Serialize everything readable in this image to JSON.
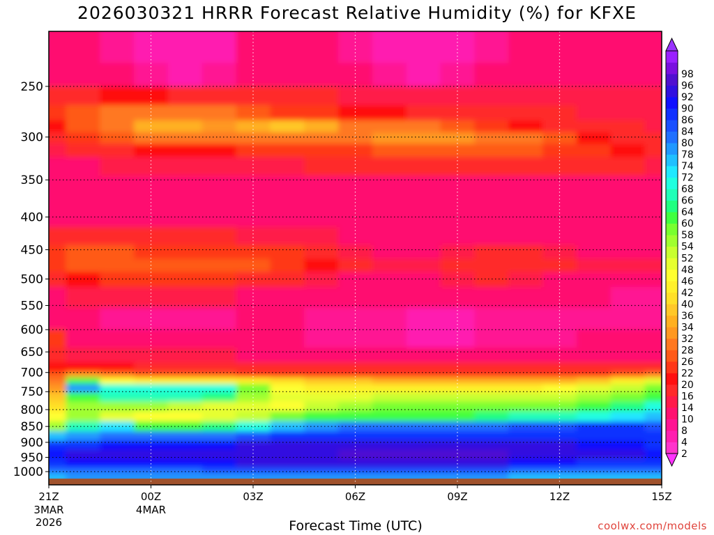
{
  "chart_data": {
    "type": "heatmap",
    "title": "2026030321 HRRR Forecast Relative Humidity (%) for KFXE",
    "xlabel": "Forecast Time (UTC)",
    "ylabel": "",
    "credit": "coolwx.com/models",
    "x_ticks": [
      {
        "label": "21Z",
        "sub1": "3MAR",
        "sub2": "2026",
        "hour": 0
      },
      {
        "label": "00Z",
        "sub1": "4MAR",
        "sub2": "",
        "hour": 3
      },
      {
        "label": "03Z",
        "sub1": "",
        "sub2": "",
        "hour": 6
      },
      {
        "label": "06Z",
        "sub1": "",
        "sub2": "",
        "hour": 9
      },
      {
        "label": "09Z",
        "sub1": "",
        "sub2": "",
        "hour": 12
      },
      {
        "label": "12Z",
        "sub1": "",
        "sub2": "",
        "hour": 15
      },
      {
        "label": "15Z",
        "sub1": "",
        "sub2": "",
        "hour": 18
      }
    ],
    "y_ticks": [
      {
        "label": "250",
        "p": 250
      },
      {
        "label": "300",
        "p": 300
      },
      {
        "label": "350",
        "p": 350
      },
      {
        "label": "400",
        "p": 400
      },
      {
        "label": "450",
        "p": 450
      },
      {
        "label": "500",
        "p": 500
      },
      {
        "label": "550",
        "p": 550
      },
      {
        "label": "600",
        "p": 600
      },
      {
        "label": "650",
        "p": 650
      },
      {
        "label": "700",
        "p": 700
      },
      {
        "label": "750",
        "p": 750
      },
      {
        "label": "800",
        "p": 800
      },
      {
        "label": "850",
        "p": 850
      },
      {
        "label": "900",
        "p": 900
      },
      {
        "label": "950",
        "p": 950
      },
      {
        "label": "1000",
        "p": 1000
      }
    ],
    "xlim": [
      0,
      18
    ],
    "ylim_hpa": [
      200,
      1030
    ],
    "y_scale": "log-pressure",
    "grid": true,
    "colorbar_levels": [
      2,
      4,
      8,
      10,
      14,
      16,
      20,
      22,
      26,
      28,
      32,
      34,
      36,
      40,
      42,
      46,
      48,
      52,
      54,
      58,
      60,
      64,
      66,
      68,
      72,
      74,
      78,
      80,
      84,
      86,
      90,
      92,
      96,
      98
    ],
    "colorbar_colors": [
      "#ff33cc",
      "#ff1fb0",
      "#ff1493",
      "#ff1070",
      "#ff1a4a",
      "#ff2a2a",
      "#ff1010",
      "#ff3818",
      "#ff5a18",
      "#ff7820",
      "#ff9820",
      "#ffb020",
      "#ffc828",
      "#ffe028",
      "#fff02a",
      "#ffff30",
      "#e6ff30",
      "#c8ff30",
      "#a0ff30",
      "#78ff30",
      "#40ff40",
      "#20ff80",
      "#20ffb8",
      "#20ffe0",
      "#20e8ff",
      "#20c0ff",
      "#2098ff",
      "#2070ff",
      "#1a50ff",
      "#1030ff",
      "#1010ff",
      "#3010e0",
      "#5010d0",
      "#7a10e0",
      "#9a20ff"
    ],
    "colorbar_under": "#ff33ff",
    "colorbar_over": "#9933ff",
    "ground_color": "#a0522d",
    "rows": [
      {
        "p": 220,
        "values": [
          10,
          10,
          8,
          6,
          4,
          6,
          10,
          10,
          10,
          8,
          6,
          4,
          6,
          8,
          10,
          10,
          10,
          10,
          10
        ]
      },
      {
        "p": 240,
        "values": [
          12,
          12,
          10,
          8,
          6,
          8,
          12,
          12,
          12,
          10,
          8,
          6,
          8,
          10,
          12,
          12,
          12,
          12,
          12
        ]
      },
      {
        "p": 260,
        "values": [
          16,
          18,
          20,
          20,
          18,
          18,
          16,
          16,
          16,
          14,
          14,
          14,
          14,
          14,
          14,
          14,
          14,
          14,
          14
        ]
      },
      {
        "p": 275,
        "values": [
          22,
          26,
          30,
          30,
          28,
          28,
          26,
          24,
          22,
          20,
          20,
          18,
          16,
          16,
          16,
          16,
          14,
          14,
          14
        ]
      },
      {
        "p": 290,
        "values": [
          20,
          26,
          30,
          34,
          34,
          32,
          34,
          36,
          34,
          30,
          28,
          28,
          26,
          24,
          20,
          18,
          16,
          16,
          14
        ]
      },
      {
        "p": 300,
        "values": [
          18,
          22,
          26,
          28,
          28,
          28,
          30,
          30,
          30,
          30,
          32,
          32,
          32,
          30,
          28,
          26,
          20,
          18,
          16
        ]
      },
      {
        "p": 315,
        "values": [
          14,
          16,
          18,
          20,
          20,
          20,
          22,
          22,
          22,
          24,
          26,
          26,
          26,
          26,
          26,
          24,
          22,
          20,
          18
        ]
      },
      {
        "p": 330,
        "values": [
          12,
          12,
          14,
          14,
          14,
          14,
          14,
          14,
          16,
          16,
          18,
          18,
          18,
          18,
          18,
          18,
          18,
          16,
          14
        ]
      },
      {
        "p": 360,
        "values": [
          10,
          10,
          10,
          10,
          10,
          10,
          10,
          10,
          10,
          10,
          10,
          10,
          10,
          10,
          10,
          10,
          10,
          10,
          10
        ]
      },
      {
        "p": 400,
        "values": [
          12,
          12,
          12,
          10,
          10,
          10,
          12,
          12,
          12,
          10,
          10,
          10,
          10,
          10,
          12,
          12,
          10,
          10,
          10
        ]
      },
      {
        "p": 430,
        "values": [
          16,
          18,
          18,
          16,
          16,
          16,
          14,
          14,
          14,
          12,
          12,
          12,
          12,
          12,
          12,
          12,
          12,
          12,
          12
        ]
      },
      {
        "p": 455,
        "values": [
          22,
          26,
          26,
          24,
          24,
          24,
          24,
          22,
          18,
          14,
          12,
          12,
          14,
          16,
          16,
          14,
          12,
          12,
          12
        ]
      },
      {
        "p": 475,
        "values": [
          24,
          26,
          26,
          26,
          26,
          26,
          26,
          24,
          20,
          16,
          14,
          14,
          16,
          18,
          18,
          16,
          14,
          14,
          14
        ]
      },
      {
        "p": 500,
        "values": [
          16,
          20,
          22,
          22,
          22,
          22,
          18,
          16,
          14,
          12,
          12,
          12,
          14,
          16,
          14,
          12,
          12,
          10,
          12
        ]
      },
      {
        "p": 530,
        "values": [
          12,
          14,
          14,
          14,
          14,
          14,
          12,
          12,
          12,
          10,
          10,
          10,
          10,
          10,
          10,
          10,
          10,
          8,
          8
        ]
      },
      {
        "p": 580,
        "values": [
          10,
          10,
          8,
          8,
          8,
          8,
          10,
          10,
          8,
          8,
          8,
          6,
          6,
          8,
          8,
          8,
          8,
          8,
          8
        ]
      },
      {
        "p": 620,
        "values": [
          24,
          12,
          10,
          10,
          10,
          10,
          10,
          10,
          8,
          8,
          8,
          6,
          6,
          8,
          8,
          8,
          10,
          12,
          10
        ]
      },
      {
        "p": 660,
        "values": [
          16,
          14,
          14,
          14,
          14,
          14,
          12,
          12,
          12,
          12,
          12,
          12,
          12,
          12,
          12,
          12,
          12,
          12,
          12
        ]
      },
      {
        "p": 690,
        "values": [
          20,
          20,
          20,
          18,
          18,
          18,
          18,
          18,
          18,
          18,
          18,
          18,
          18,
          18,
          18,
          18,
          18,
          16,
          18
        ]
      },
      {
        "p": 705,
        "values": [
          26,
          32,
          28,
          26,
          26,
          26,
          24,
          24,
          24,
          24,
          24,
          22,
          22,
          22,
          22,
          22,
          24,
          26,
          28
        ]
      },
      {
        "p": 720,
        "values": [
          30,
          60,
          46,
          44,
          44,
          44,
          42,
          40,
          38,
          36,
          34,
          34,
          34,
          34,
          34,
          34,
          38,
          44,
          48
        ]
      },
      {
        "p": 740,
        "values": [
          32,
          78,
          70,
          70,
          70,
          68,
          58,
          46,
          44,
          44,
          42,
          42,
          42,
          42,
          44,
          46,
          48,
          52,
          58
        ]
      },
      {
        "p": 765,
        "values": [
          36,
          62,
          66,
          66,
          66,
          64,
          56,
          48,
          48,
          50,
          52,
          52,
          52,
          52,
          52,
          52,
          54,
          58,
          62
        ]
      },
      {
        "p": 790,
        "values": [
          40,
          54,
          56,
          54,
          52,
          50,
          48,
          46,
          52,
          56,
          58,
          58,
          58,
          58,
          58,
          58,
          60,
          64,
          68
        ]
      },
      {
        "p": 820,
        "values": [
          46,
          54,
          48,
          46,
          46,
          48,
          52,
          58,
          60,
          62,
          62,
          62,
          62,
          64,
          66,
          66,
          70,
          72,
          74
        ]
      },
      {
        "p": 850,
        "values": [
          54,
          66,
          72,
          60,
          62,
          64,
          70,
          74,
          78,
          80,
          80,
          80,
          80,
          82,
          84,
          84,
          86,
          86,
          84
        ]
      },
      {
        "p": 880,
        "values": [
          74,
          78,
          82,
          80,
          80,
          82,
          84,
          86,
          88,
          88,
          88,
          88,
          88,
          88,
          88,
          88,
          88,
          88,
          88
        ]
      },
      {
        "p": 910,
        "values": [
          86,
          88,
          90,
          90,
          90,
          90,
          92,
          92,
          92,
          94,
          94,
          94,
          94,
          94,
          92,
          92,
          90,
          90,
          88
        ]
      },
      {
        "p": 940,
        "values": [
          90,
          92,
          92,
          92,
          92,
          94,
          94,
          94,
          94,
          96,
          96,
          96,
          96,
          96,
          94,
          94,
          92,
          92,
          90
        ]
      },
      {
        "p": 970,
        "values": [
          88,
          90,
          90,
          90,
          90,
          90,
          92,
          92,
          92,
          92,
          92,
          92,
          92,
          92,
          90,
          90,
          88,
          86,
          86
        ]
      },
      {
        "p": 1000,
        "values": [
          80,
          82,
          82,
          82,
          82,
          84,
          84,
          84,
          84,
          84,
          84,
          84,
          84,
          84,
          82,
          82,
          80,
          80,
          80
        ]
      },
      {
        "p": 1015,
        "values": [
          76,
          78,
          78,
          78,
          78,
          78,
          78,
          78,
          78,
          78,
          78,
          78,
          78,
          78,
          76,
          76,
          76,
          76,
          76
        ]
      }
    ]
  }
}
